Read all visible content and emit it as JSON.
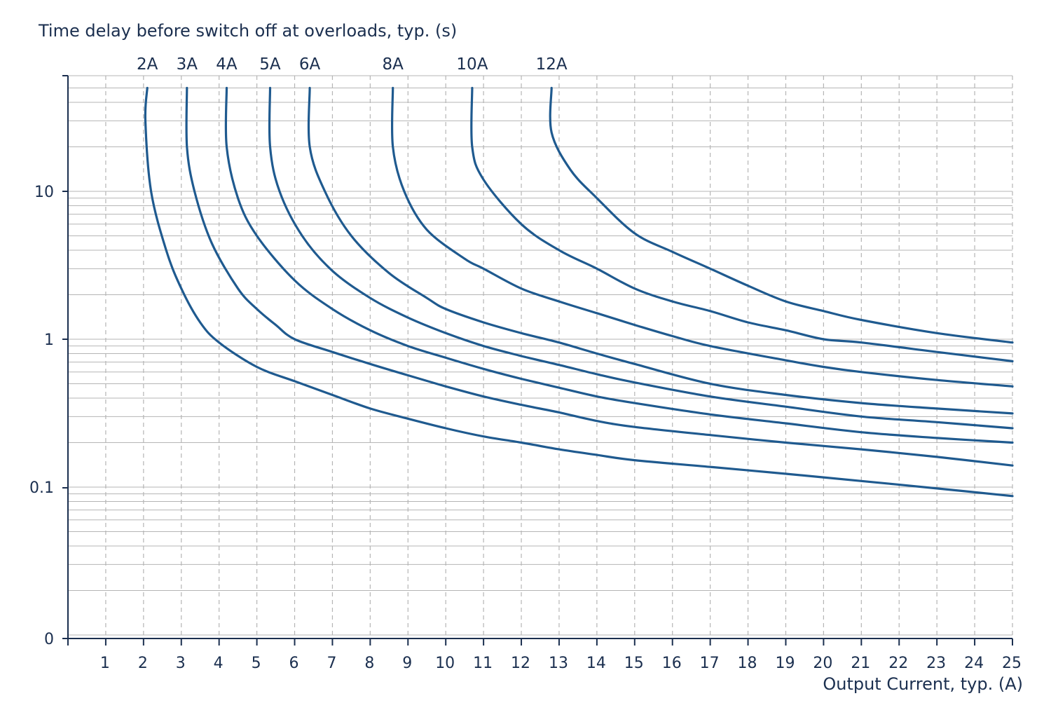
{
  "chart_data": {
    "type": "line",
    "ylabel": "Time delay before switch off at overloads, typ. (s)",
    "xlabel": "Output Current, typ. (A)",
    "x_ticks": [
      1,
      2,
      3,
      4,
      5,
      6,
      7,
      8,
      9,
      10,
      11,
      12,
      13,
      14,
      15,
      16,
      17,
      18,
      19,
      20,
      21,
      22,
      23,
      24,
      25
    ],
    "xlim": [
      0,
      25
    ],
    "y_scale": "log",
    "y_tick_labels": [
      {
        "value": 10,
        "label": "10"
      },
      {
        "value": 1,
        "label": "1"
      },
      {
        "value": 0.1,
        "label": "0.1"
      },
      {
        "value": 0.01,
        "label": "0"
      }
    ],
    "ylim": [
      0.01,
      50
    ],
    "grid": {
      "x": "dashed",
      "y": "solid-log-minor"
    },
    "colors": {
      "series": "#1f5a8f",
      "axis": "#1b2f4f",
      "grid": "#b5b5b5"
    },
    "series": [
      {
        "name": "2A",
        "points": [
          [
            2.1,
            50
          ],
          [
            2.05,
            30
          ],
          [
            2.2,
            10
          ],
          [
            2.6,
            4
          ],
          [
            3,
            2.2
          ],
          [
            3.5,
            1.3
          ],
          [
            4,
            0.95
          ],
          [
            5,
            0.65
          ],
          [
            6,
            0.52
          ],
          [
            7,
            0.42
          ],
          [
            8,
            0.34
          ],
          [
            9,
            0.29
          ],
          [
            10,
            0.25
          ],
          [
            11,
            0.22
          ],
          [
            12,
            0.2
          ],
          [
            13,
            0.18
          ],
          [
            14,
            0.165
          ],
          [
            15,
            0.152
          ],
          [
            17,
            0.137
          ],
          [
            19,
            0.123
          ],
          [
            21,
            0.11
          ],
          [
            23,
            0.098
          ],
          [
            25,
            0.087
          ]
        ]
      },
      {
        "name": "3A",
        "points": [
          [
            3.15,
            50
          ],
          [
            3.15,
            20
          ],
          [
            3.35,
            10
          ],
          [
            3.8,
            4.5
          ],
          [
            4.5,
            2.2
          ],
          [
            5,
            1.6
          ],
          [
            5.5,
            1.25
          ],
          [
            6,
            1
          ],
          [
            7,
            0.82
          ],
          [
            8,
            0.68
          ],
          [
            9,
            0.57
          ],
          [
            10,
            0.48
          ],
          [
            11,
            0.41
          ],
          [
            12,
            0.36
          ],
          [
            13,
            0.32
          ],
          [
            14,
            0.28
          ],
          [
            15,
            0.255
          ],
          [
            17,
            0.225
          ],
          [
            19,
            0.2
          ],
          [
            21,
            0.18
          ],
          [
            23,
            0.16
          ],
          [
            25,
            0.14
          ]
        ]
      },
      {
        "name": "4A",
        "points": [
          [
            4.2,
            50
          ],
          [
            4.2,
            20
          ],
          [
            4.5,
            9
          ],
          [
            5,
            5
          ],
          [
            6,
            2.5
          ],
          [
            7,
            1.6
          ],
          [
            8,
            1.15
          ],
          [
            9,
            0.9
          ],
          [
            10,
            0.75
          ],
          [
            11,
            0.63
          ],
          [
            12,
            0.54
          ],
          [
            13,
            0.47
          ],
          [
            14,
            0.41
          ],
          [
            15,
            0.37
          ],
          [
            17,
            0.31
          ],
          [
            19,
            0.27
          ],
          [
            21,
            0.235
          ],
          [
            23,
            0.215
          ],
          [
            25,
            0.2
          ]
        ]
      },
      {
        "name": "5A",
        "points": [
          [
            5.35,
            50
          ],
          [
            5.35,
            20
          ],
          [
            5.6,
            10
          ],
          [
            6.2,
            5
          ],
          [
            7,
            2.9
          ],
          [
            8,
            1.9
          ],
          [
            9,
            1.4
          ],
          [
            10,
            1.1
          ],
          [
            11,
            0.9
          ],
          [
            12,
            0.77
          ],
          [
            13,
            0.67
          ],
          [
            14,
            0.58
          ],
          [
            15,
            0.51
          ],
          [
            17,
            0.41
          ],
          [
            19,
            0.35
          ],
          [
            21,
            0.3
          ],
          [
            23,
            0.275
          ],
          [
            25,
            0.25
          ]
        ]
      },
      {
        "name": "6A",
        "points": [
          [
            6.4,
            50
          ],
          [
            6.4,
            20
          ],
          [
            6.8,
            10
          ],
          [
            7.5,
            5
          ],
          [
            8.5,
            2.8
          ],
          [
            9.5,
            1.9
          ],
          [
            10,
            1.6
          ],
          [
            11,
            1.3
          ],
          [
            12,
            1.1
          ],
          [
            13,
            0.95
          ],
          [
            14,
            0.8
          ],
          [
            15,
            0.68
          ],
          [
            17,
            0.5
          ],
          [
            19,
            0.42
          ],
          [
            21,
            0.37
          ],
          [
            23,
            0.34
          ],
          [
            25,
            0.315
          ]
        ]
      },
      {
        "name": "8A",
        "points": [
          [
            8.6,
            50
          ],
          [
            8.6,
            20
          ],
          [
            8.9,
            10
          ],
          [
            9.5,
            5.5
          ],
          [
            10.5,
            3.5
          ],
          [
            11,
            3
          ],
          [
            12,
            2.2
          ],
          [
            13,
            1.8
          ],
          [
            14,
            1.5
          ],
          [
            15,
            1.25
          ],
          [
            16,
            1.05
          ],
          [
            17,
            0.9
          ],
          [
            19,
            0.72
          ],
          [
            20,
            0.65
          ],
          [
            21,
            0.6
          ],
          [
            23,
            0.53
          ],
          [
            25,
            0.48
          ]
        ]
      },
      {
        "name": "10A",
        "points": [
          [
            10.7,
            50
          ],
          [
            10.7,
            20
          ],
          [
            11,
            12
          ],
          [
            12,
            6
          ],
          [
            13,
            4
          ],
          [
            14,
            3
          ],
          [
            15,
            2.2
          ],
          [
            16,
            1.8
          ],
          [
            17,
            1.55
          ],
          [
            18,
            1.3
          ],
          [
            19,
            1.15
          ],
          [
            20,
            1
          ],
          [
            21,
            0.95
          ],
          [
            23,
            0.82
          ],
          [
            25,
            0.71
          ]
        ]
      },
      {
        "name": "12A",
        "points": [
          [
            12.8,
            50
          ],
          [
            12.8,
            25
          ],
          [
            13.3,
            14
          ],
          [
            14,
            9
          ],
          [
            15,
            5.2
          ],
          [
            16,
            3.9
          ],
          [
            17,
            3
          ],
          [
            18,
            2.3
          ],
          [
            19,
            1.8
          ],
          [
            20,
            1.55
          ],
          [
            21,
            1.35
          ],
          [
            23,
            1.1
          ],
          [
            25,
            0.95
          ]
        ]
      }
    ]
  }
}
